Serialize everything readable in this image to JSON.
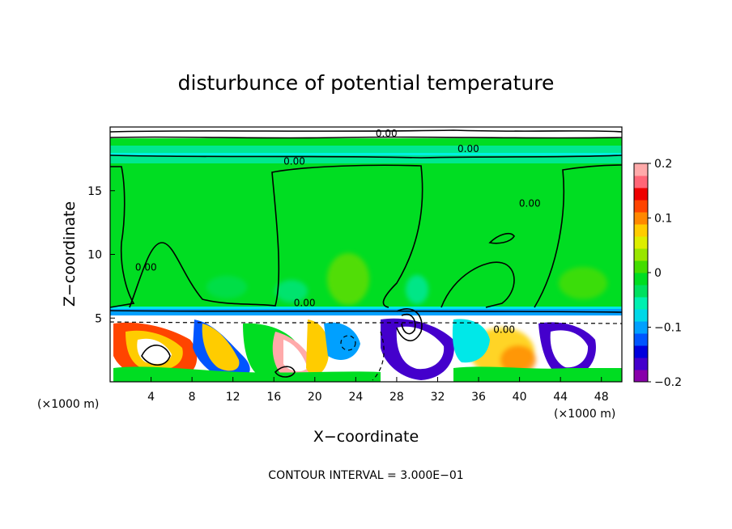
{
  "chart_data": {
    "type": "heatmap",
    "title": "disturbunce of potential temperature",
    "xlabel": "X−coordinate",
    "ylabel": "Z−coordinate",
    "x_unit": "(×1000 m)",
    "z_unit": "(×1000 m)",
    "xlim": [
      0,
      50
    ],
    "ylim": [
      0,
      20
    ],
    "x_ticks": [
      4,
      8,
      12,
      16,
      20,
      24,
      28,
      32,
      36,
      40,
      44,
      48
    ],
    "y_ticks": [
      5,
      10,
      15
    ],
    "colorbar": {
      "range": [
        -0.2,
        0.2
      ],
      "ticks": [
        0.2,
        0.1,
        0,
        -0.1,
        -0.2
      ],
      "tick_labels": [
        "0.2",
        "0.1",
        "0",
        "−0.1",
        "−0.2"
      ],
      "colors": [
        "#8800aa",
        "#4400cc",
        "#0000dd",
        "#0055ff",
        "#00a0ff",
        "#00d8e8",
        "#00f0b0",
        "#00e060",
        "#00dd22",
        "#44dd00",
        "#99e600",
        "#ddee00",
        "#ffcc00",
        "#ff8800",
        "#ff4400",
        "#ee0000",
        "#ff6677",
        "#ffaaaa"
      ]
    },
    "contour_interval_text": "CONTOUR INTERVAL = 3.000E−01",
    "contour_labels": [
      {
        "text": "0.00",
        "x": 27,
        "z": 19.5
      },
      {
        "text": "0.00",
        "x": 35,
        "z": 18.3
      },
      {
        "text": "0.00",
        "x": 18,
        "z": 17.3
      },
      {
        "text": "0.00",
        "x": 41,
        "z": 14
      },
      {
        "text": "0.00",
        "x": 3.5,
        "z": 9
      },
      {
        "text": "0.00",
        "x": 19,
        "z": 6.2
      },
      {
        "text": "0.00",
        "x": 38.5,
        "z": 4.1
      }
    ]
  }
}
